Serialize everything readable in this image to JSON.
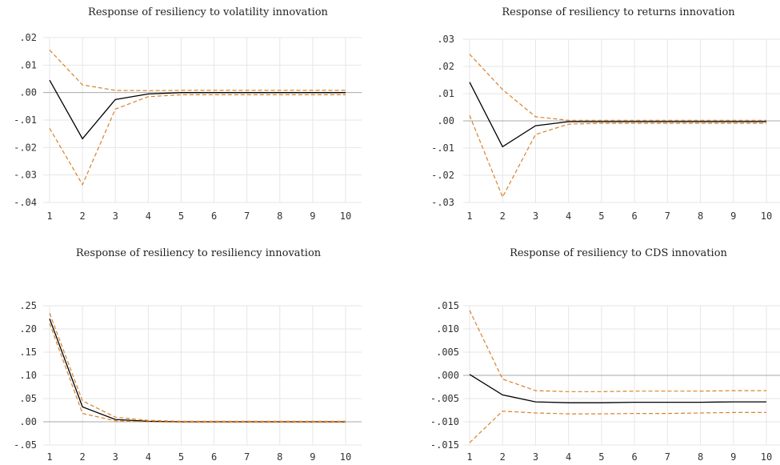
{
  "chart_data": [
    {
      "type": "line",
      "title": "Response of resiliency to volatility innovation",
      "x": [
        1,
        2,
        3,
        4,
        5,
        6,
        7,
        8,
        9,
        10
      ],
      "x_tick_labels": [
        "1",
        "2",
        "3",
        "4",
        "5",
        "6",
        "7",
        "8",
        "9",
        "10"
      ],
      "ylim": [
        -0.04,
        0.02
      ],
      "y_ticks": [
        0.02,
        0.01,
        0.0,
        -0.01,
        -0.02,
        -0.03,
        -0.04
      ],
      "y_tick_labels": [
        ".02",
        ".01",
        ".00",
        "-.01",
        "-.02",
        "-.03",
        "-.04"
      ],
      "series": [
        {
          "role": "response",
          "values": [
            0.0045,
            -0.0168,
            -0.0025,
            -0.0005,
            0.0,
            0.0,
            0.0,
            0.0,
            0.0,
            0.0
          ]
        },
        {
          "role": "upper",
          "values": [
            0.0155,
            0.0028,
            0.0008,
            0.0007,
            0.0008,
            0.0008,
            0.0008,
            0.0008,
            0.0008,
            0.0008
          ]
        },
        {
          "role": "lower",
          "values": [
            -0.013,
            -0.0335,
            -0.006,
            -0.0015,
            -0.0008,
            -0.0008,
            -0.0008,
            -0.0008,
            -0.0008,
            -0.0008
          ]
        }
      ],
      "grid": true,
      "colors": {
        "response": "#000000",
        "band": "#d9822b"
      }
    },
    {
      "type": "line",
      "title": "Response of resiliency to returns innovation",
      "x": [
        1,
        2,
        3,
        4,
        5,
        6,
        7,
        8,
        9,
        10
      ],
      "x_tick_labels": [
        "1",
        "2",
        "3",
        "4",
        "5",
        "6",
        "7",
        "8",
        "9",
        "10"
      ],
      "ylim": [
        -0.03,
        0.03
      ],
      "y_ticks": [
        0.03,
        0.02,
        0.01,
        0.0,
        -0.01,
        -0.02,
        -0.03
      ],
      "y_tick_labels": [
        ".03",
        ".02",
        ".01",
        ".00",
        "-.01",
        "-.02",
        "-.03"
      ],
      "series": [
        {
          "role": "response",
          "values": [
            0.0142,
            -0.0095,
            -0.0018,
            -0.0003,
            -0.0003,
            -0.0003,
            -0.0003,
            -0.0003,
            -0.0003,
            -0.0003
          ]
        },
        {
          "role": "upper",
          "values": [
            0.0245,
            0.0115,
            0.0015,
            0.0002,
            0.0002,
            0.0002,
            0.0002,
            0.0002,
            0.0002,
            0.0002
          ]
        },
        {
          "role": "lower",
          "values": [
            0.002,
            -0.028,
            -0.005,
            -0.0012,
            -0.0009,
            -0.0009,
            -0.0009,
            -0.0009,
            -0.0009,
            -0.0009
          ]
        }
      ],
      "grid": true,
      "colors": {
        "response": "#000000",
        "band": "#d9822b"
      }
    },
    {
      "type": "line",
      "title": "Response of resiliency to resiliency innovation",
      "x": [
        1,
        2,
        3,
        4,
        5,
        6,
        7,
        8,
        9,
        10
      ],
      "x_tick_labels": [
        "1",
        "2",
        "3",
        "4",
        "5",
        "6",
        "7",
        "8",
        "9",
        "10"
      ],
      "ylim": [
        -0.05,
        0.25
      ],
      "y_ticks": [
        0.25,
        0.2,
        0.15,
        0.1,
        0.05,
        0.0,
        -0.05
      ],
      "y_tick_labels": [
        ".25",
        ".20",
        ".15",
        ".10",
        ".05",
        ".00",
        "-.05"
      ],
      "series": [
        {
          "role": "response",
          "values": [
            0.222,
            0.032,
            0.005,
            0.001,
            0.0,
            0.0,
            0.0,
            0.0,
            0.0,
            0.0
          ]
        },
        {
          "role": "upper",
          "values": [
            0.234,
            0.045,
            0.01,
            0.003,
            0.001,
            0.001,
            0.001,
            0.001,
            0.001,
            0.001
          ]
        },
        {
          "role": "lower",
          "values": [
            0.212,
            0.018,
            0.002,
            0.0,
            -0.001,
            -0.001,
            -0.001,
            -0.001,
            -0.001,
            -0.001
          ]
        }
      ],
      "grid": true,
      "colors": {
        "response": "#000000",
        "band": "#d9822b"
      }
    },
    {
      "type": "line",
      "title": "Response of resiliency to CDS innovation",
      "x": [
        1,
        2,
        3,
        4,
        5,
        6,
        7,
        8,
        9,
        10
      ],
      "x_tick_labels": [
        "1",
        "2",
        "3",
        "4",
        "5",
        "6",
        "7",
        "8",
        "9",
        "10"
      ],
      "ylim": [
        -0.015,
        0.015
      ],
      "y_ticks": [
        0.015,
        0.01,
        0.005,
        0.0,
        -0.005,
        -0.01,
        -0.015
      ],
      "y_tick_labels": [
        ".015",
        ".010",
        ".005",
        ".000",
        "-.005",
        "-.010",
        "-.015"
      ],
      "series": [
        {
          "role": "response",
          "values": [
            0.0002,
            -0.0042,
            -0.0057,
            -0.0059,
            -0.0059,
            -0.0058,
            -0.0058,
            -0.0058,
            -0.0057,
            -0.0057
          ]
        },
        {
          "role": "upper",
          "values": [
            0.014,
            -0.0008,
            -0.0033,
            -0.0035,
            -0.0035,
            -0.0034,
            -0.0034,
            -0.0034,
            -0.0033,
            -0.0033
          ]
        },
        {
          "role": "lower",
          "values": [
            -0.0145,
            -0.0077,
            -0.0081,
            -0.0083,
            -0.0083,
            -0.0082,
            -0.0082,
            -0.0081,
            -0.008,
            -0.008
          ]
        }
      ],
      "grid": true,
      "colors": {
        "response": "#000000",
        "band": "#d9822b"
      }
    }
  ]
}
